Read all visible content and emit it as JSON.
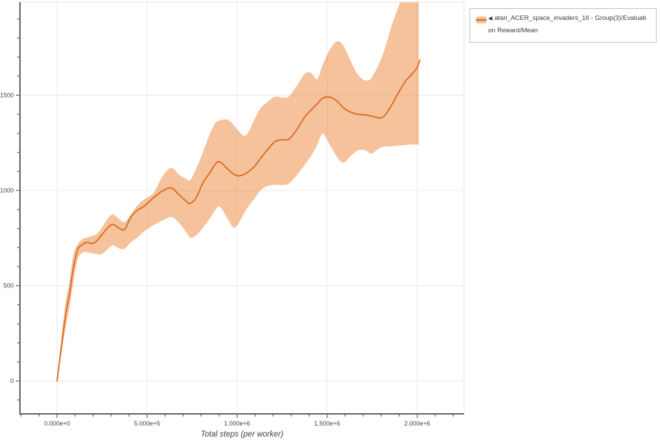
{
  "legend": {
    "entries": [
      {
        "toggle_icon": "◀",
        "label": "atari_ACER_space_invaders_16 - Group(3)/Evaluation Reward/Mean",
        "label_lines": [
          "atari_ACER_space_invaders_16 - Group(3)/Evaluati",
          "on Reward/Mean"
        ],
        "line_color": "#d9661c",
        "swatch_fill": "#f2c096"
      }
    ]
  },
  "chart_data": {
    "type": "line",
    "title": "",
    "xlabel": "Total steps (per worker)",
    "ylabel": "",
    "grid": true,
    "legend_position": "top-right-outside",
    "xlim": [
      -206000,
      2260000
    ],
    "ylim": [
      -173,
      1989
    ],
    "xticks": {
      "values": [
        0,
        500000,
        1000000,
        1500000,
        2000000
      ],
      "labels": [
        "0.000e+0",
        "5.000e+5",
        "1.000e+6",
        "1.500e+6",
        "2.000e+6"
      ],
      "minor_step": 100000
    },
    "yticks": {
      "values": [
        0,
        500,
        1000,
        1500
      ],
      "labels": [
        "0",
        "500",
        "1000",
        "1500"
      ],
      "minor_step": 100
    },
    "series": [
      {
        "name": "atari_ACER_space_invaders_16 - Group(3)/Evaluation Reward/Mean",
        "color": "#d9661c",
        "band_fill": "rgba(233,119,33,0.45)",
        "x": [
          0,
          20000,
          45000,
          70000,
          90000,
          115000,
          140000,
          165000,
          190000,
          215000,
          245000,
          280000,
          310000,
          345000,
          375000,
          410000,
          445000,
          480000,
          505000,
          540000,
          590000,
          635000,
          675000,
          715000,
          740000,
          775000,
          810000,
          850000,
          880000,
          905000,
          945000,
          980000,
          1010000,
          1050000,
          1095000,
          1130000,
          1165000,
          1210000,
          1250000,
          1285000,
          1325000,
          1375000,
          1410000,
          1445000,
          1475000,
          1515000,
          1555000,
          1590000,
          1630000,
          1670000,
          1710000,
          1745000,
          1795000,
          1825000,
          1860000,
          1900000,
          1935000,
          1975000,
          2000000,
          2015000
        ],
        "mean": [
          0,
          150,
          330,
          460,
          590,
          690,
          715,
          728,
          722,
          730,
          762,
          803,
          822,
          802,
          796,
          860,
          895,
          915,
          935,
          965,
          1000,
          1013,
          980,
          945,
          932,
          965,
          1040,
          1095,
          1140,
          1150,
          1115,
          1086,
          1077,
          1090,
          1125,
          1168,
          1210,
          1256,
          1266,
          1268,
          1310,
          1386,
          1422,
          1455,
          1484,
          1490,
          1468,
          1434,
          1411,
          1400,
          1397,
          1391,
          1380,
          1400,
          1452,
          1520,
          1574,
          1615,
          1646,
          1685
        ],
        "band": {
          "x_end": 2008000,
          "lower": [
            0,
            118,
            262,
            392,
            515,
            638,
            672,
            676,
            671,
            668,
            664,
            690,
            712,
            696,
            694,
            728,
            752,
            782,
            800,
            820,
            845,
            860,
            832,
            785,
            752,
            766,
            805,
            855,
            900,
            915,
            855,
            805,
            830,
            900,
            955,
            1000,
            1022,
            1030,
            1028,
            1035,
            1073,
            1134,
            1180,
            1240,
            1298,
            1240,
            1175,
            1145,
            1180,
            1210,
            1212,
            1195,
            1225,
            1230,
            1232,
            1236,
            1238,
            1242,
            1240,
            1240
          ],
          "upper": [
            0,
            185,
            395,
            528,
            660,
            718,
            744,
            752,
            760,
            768,
            800,
            850,
            875,
            850,
            835,
            875,
            920,
            950,
            965,
            992,
            1080,
            1118,
            1085,
            1061,
            1055,
            1120,
            1200,
            1300,
            1355,
            1368,
            1372,
            1345,
            1310,
            1290,
            1370,
            1432,
            1462,
            1492,
            1488,
            1492,
            1540,
            1612,
            1616,
            1585,
            1660,
            1740,
            1783,
            1760,
            1680,
            1610,
            1578,
            1590,
            1680,
            1760,
            1870,
            1975,
            2060,
            2120,
            2130,
            2130
          ]
        }
      }
    ]
  }
}
